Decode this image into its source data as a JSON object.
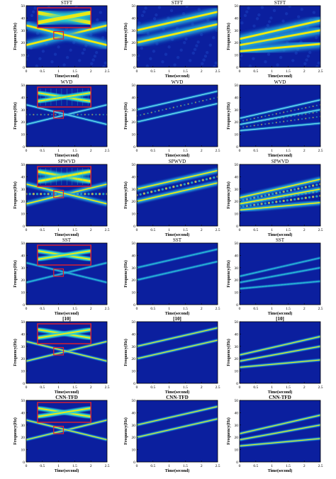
{
  "figure": {
    "columns": 3,
    "rows": 6,
    "colors": {
      "background": "#0b1f9e",
      "ridge_core": "#ffee00",
      "ridge_mid": "#29d2d2",
      "ridge_edge": "#1f6fe0",
      "zoom_box": "#e5202a",
      "axis": "#000000"
    }
  },
  "panels": [
    {
      "method": "STFT",
      "title": "STFT",
      "ylabel": "Frequency(Hz)",
      "xlabel": "Time(second)",
      "zoom": true
    },
    {
      "method": "STFT",
      "title": "STFT",
      "ylabel": "Frequency(Hz)",
      "xlabel": "Time(second)",
      "zoom": false
    },
    {
      "method": "STFT",
      "title": "STFT",
      "ylabel": "Frequency(Hz)",
      "xlabel": "Time(second)",
      "zoom": false
    },
    {
      "method": "WVD",
      "title": "WVD",
      "ylabel": "Frequency(Hz)",
      "xlabel": "Time(second)",
      "zoom": true
    },
    {
      "method": "WVD",
      "title": "WVD",
      "ylabel": "Frequency(Hz)",
      "xlabel": "Time(second)",
      "zoom": false
    },
    {
      "method": "WVD",
      "title": "WVD",
      "ylabel": "Frequency(Hz)",
      "xlabel": "Time(second)",
      "zoom": false
    },
    {
      "method": "SPWVD",
      "title": "SPWVD",
      "ylabel": "Frequency(Hz)",
      "xlabel": "Time(second)",
      "zoom": true
    },
    {
      "method": "SPWVD",
      "title": "SPWVD",
      "ylabel": "Frequency(Hz)",
      "xlabel": "Time(second)",
      "zoom": false
    },
    {
      "method": "SPWVD",
      "title": "SPWVD",
      "ylabel": "Frequency(Hz)",
      "xlabel": "Time(second)",
      "zoom": false
    },
    {
      "method": "SST",
      "title": "SST",
      "ylabel": "Frequency(Hz)",
      "xlabel": "Time(second)",
      "zoom": true
    },
    {
      "method": "SST",
      "title": "SST",
      "ylabel": "Frequency(Hz)",
      "xlabel": "Time(second)",
      "zoom": false
    },
    {
      "method": "SST",
      "title": "SST",
      "ylabel": "Frequency(Hz)",
      "xlabel": "Time(second)",
      "zoom": false
    },
    {
      "method": "[10]",
      "title": "[10]",
      "ylabel": "Frequency(Hz)",
      "xlabel": "Time(second)",
      "zoom": true
    },
    {
      "method": "[10]",
      "title": "[10]",
      "ylabel": "Frequency(Hz)",
      "xlabel": "Time(second)",
      "zoom": false
    },
    {
      "method": "[10]",
      "title": "[10]",
      "ylabel": "Frequency(Hz)",
      "xlabel": "Time(second)",
      "zoom": false
    },
    {
      "method": "CNN-TFD",
      "title": "CNN-TFD",
      "ylabel": "Frequency(Hz)",
      "xlabel": "Time(second)",
      "zoom": true
    },
    {
      "method": "CNN-TFD",
      "title": "CNN-TFD",
      "ylabel": "Frequency(Hz)",
      "xlabel": "Time(second)",
      "zoom": false
    },
    {
      "method": "CNN-TFD",
      "title": "CNN-TFD",
      "ylabel": "Frequency(Hz)",
      "xlabel": "Time(second)",
      "zoom": false
    }
  ],
  "chart_data": {
    "type": "heatmap",
    "xlim": [
      0,
      2.5
    ],
    "ylim": [
      0,
      50
    ],
    "xticks": [
      "0",
      "0.5",
      "1",
      "1.5",
      "2",
      "2.5"
    ],
    "yticks": [
      "0",
      "10",
      "20",
      "30",
      "40",
      "50"
    ],
    "signals": [
      {
        "column": 1,
        "name": "",
        "components": [
          {
            "t": [
              0,
              2.5
            ],
            "f": [
              18,
              34
            ]
          },
          {
            "t": [
              0,
              2.5
            ],
            "f": [
              34,
              18
            ]
          }
        ],
        "zoom_region": {
          "t": [
            0.85,
            1.15
          ],
          "f": [
            23,
            29
          ]
        }
      },
      {
        "column": 2,
        "name": "",
        "components": [
          {
            "t": [
              0,
              2.5
            ],
            "f": [
              20,
              35
            ]
          },
          {
            "t": [
              0,
              2.5
            ],
            "f": [
              30,
              45
            ]
          }
        ]
      },
      {
        "column": 3,
        "name": "",
        "components": [
          {
            "t": [
              0,
              2.5
            ],
            "f": [
              13,
              19
            ]
          },
          {
            "t": [
              0,
              2.5
            ],
            "f": [
              18,
              30
            ]
          },
          {
            "t": [
              0,
              2.5
            ],
            "f": [
              23,
              38
            ]
          }
        ]
      }
    ]
  }
}
